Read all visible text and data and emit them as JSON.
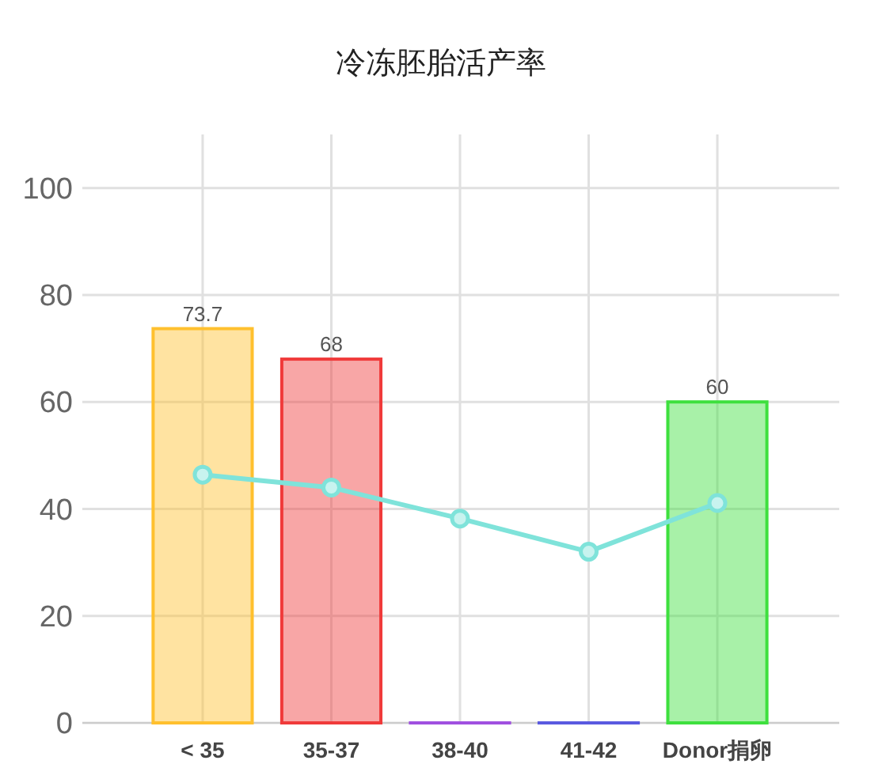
{
  "chart_data": {
    "type": "bar",
    "title": "冷冻胚胎活产率",
    "categories": [
      "< 35",
      "35-37",
      "38-40",
      "41-42",
      "Donor捐卵"
    ],
    "series": [
      {
        "values": [
          73.7,
          68,
          0,
          0,
          60
        ],
        "colors": [
          "#ffc02e",
          "#f03a3a",
          "#a050e0",
          "#5a5ae0",
          "#3ee03e"
        ],
        "value_labels": [
          "73.7",
          "68",
          null,
          null,
          "60"
        ]
      },
      {
        "type": "line",
        "color": "#7fe3da",
        "values": [
          46.4,
          44,
          38.2,
          32,
          41.1
        ],
        "marker": "circle"
      }
    ],
    "ylim": [
      0,
      110
    ],
    "yticks": [
      0,
      20,
      40,
      60,
      80,
      100
    ],
    "grid": true
  }
}
